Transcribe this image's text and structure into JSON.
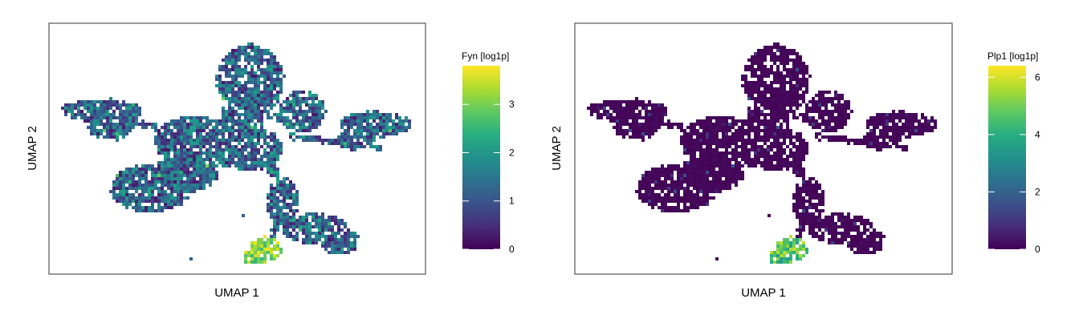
{
  "chart_data": [
    {
      "type": "heatmap",
      "subtype": "hexbin-umap",
      "xlabel": "UMAP 1",
      "ylabel": "UMAP 2",
      "colorbar": {
        "title": "Fyn [log1p]",
        "range": [
          0,
          3.8
        ],
        "ticks": [
          0,
          1,
          2,
          3
        ],
        "tick_labels": [
          "0",
          "1",
          "2",
          "3"
        ],
        "colormap": "viridis"
      },
      "expression_profile": {
        "background_level": 1.2,
        "high_region": "bottom cluster",
        "high_region_values": [
          2.5,
          3.7
        ]
      }
    },
    {
      "type": "heatmap",
      "subtype": "hexbin-umap",
      "xlabel": "UMAP 1",
      "ylabel": "UMAP 2",
      "colorbar": {
        "title": "Plp1 [log1p]",
        "range": [
          0,
          6.4
        ],
        "ticks": [
          0,
          2,
          4,
          6
        ],
        "tick_labels": [
          "0",
          "2",
          "4",
          "6"
        ],
        "colormap": "viridis"
      },
      "expression_profile": {
        "background_level": 0.1,
        "high_region": "bottom cluster",
        "high_region_values": [
          3.5,
          5.8
        ]
      }
    }
  ]
}
